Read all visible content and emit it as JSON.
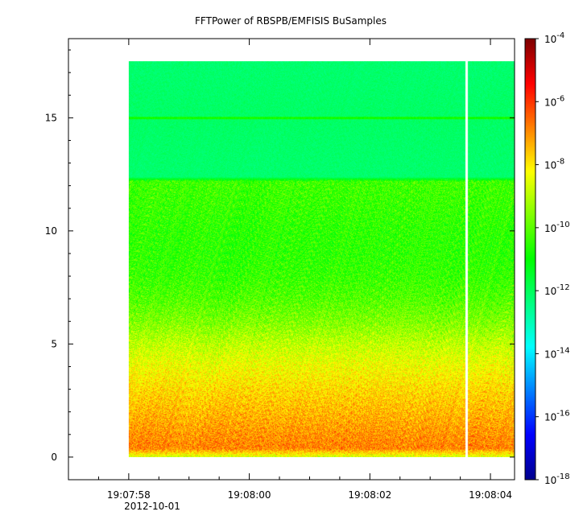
{
  "chart_data": {
    "type": "heatmap",
    "title": "FFTPower of RBSPB/EMFISIS  BuSamples",
    "xlabel": "",
    "ylabel": "",
    "x_tick_labels": [
      "19:07:58",
      "19:08:00",
      "19:08:02",
      "19:08:04"
    ],
    "x_date_label": "2012-10-01",
    "x_range": [
      "19:07:57.0",
      "19:08:04.4"
    ],
    "data_x_range": [
      "19:07:58.0",
      "19:08:04.4"
    ],
    "data_gap_at": "19:08:03.6",
    "ylim": [
      -1,
      18.5
    ],
    "y_ticks": [
      0,
      5,
      10,
      15
    ],
    "data_y_range": [
      0,
      17.5
    ],
    "colorbar": {
      "scale": "log",
      "range_exponents": [
        -18,
        -4
      ],
      "tick_exponents": [
        -4,
        -6,
        -8,
        -10,
        -12,
        -14,
        -16,
        -18
      ],
      "tick_base": "10",
      "colormap": [
        "#00008f",
        "#0000ff",
        "#0080ff",
        "#00ffff",
        "#00ff80",
        "#00ff00",
        "#80ff00",
        "#ffff00",
        "#ff8000",
        "#ff0000",
        "#800000"
      ]
    },
    "power_profile_log10": [
      {
        "y": 0.0,
        "log10_power": -8.8
      },
      {
        "y": 0.4,
        "log10_power": -6.8
      },
      {
        "y": 1.0,
        "log10_power": -7.0
      },
      {
        "y": 2.0,
        "log10_power": -7.4
      },
      {
        "y": 3.0,
        "log10_power": -7.8
      },
      {
        "y": 4.0,
        "log10_power": -8.3
      },
      {
        "y": 5.0,
        "log10_power": -8.9
      },
      {
        "y": 6.0,
        "log10_power": -9.6
      },
      {
        "y": 7.0,
        "log10_power": -10.1
      },
      {
        "y": 8.0,
        "log10_power": -10.4
      },
      {
        "y": 9.0,
        "log10_power": -10.5
      },
      {
        "y": 10.0,
        "log10_power": -10.5
      },
      {
        "y": 11.0,
        "log10_power": -10.4
      },
      {
        "y": 12.2,
        "log10_power": -10.3
      },
      {
        "y": 12.4,
        "log10_power": -12.2
      },
      {
        "y": 15.0,
        "log10_power": -12.1
      },
      {
        "y": 17.5,
        "log10_power": -12.2
      }
    ],
    "line_at": {
      "y": 15,
      "log10_power": -10.8
    }
  }
}
